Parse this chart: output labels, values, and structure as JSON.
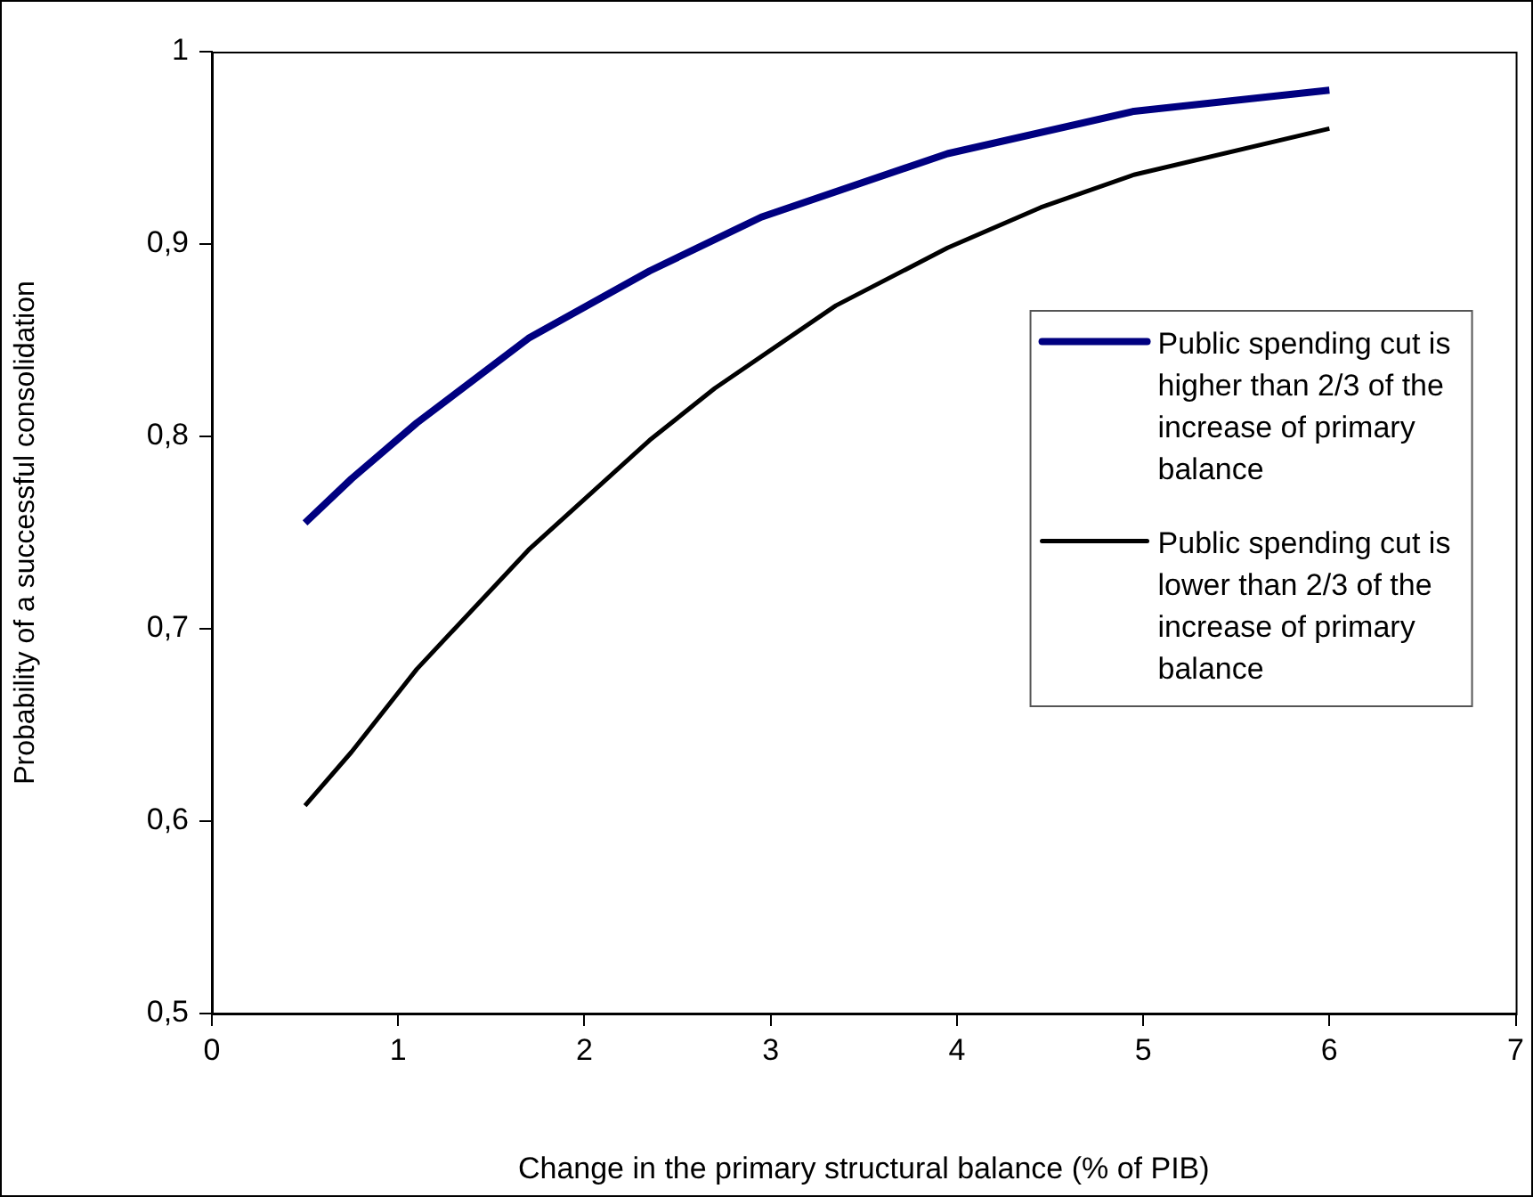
{
  "chart_data": {
    "type": "line",
    "xlabel": "Change in the primary structural balance (% of PIB)",
    "ylabel": "Probability of a successful consolidation",
    "xlim": [
      0,
      7
    ],
    "xticks": [
      0,
      1,
      2,
      3,
      4,
      5,
      6,
      7
    ],
    "ylim": [
      0.5,
      1
    ],
    "yticks": [
      {
        "value": 0.5,
        "label": "0,5"
      },
      {
        "value": 0.6,
        "label": "0,6"
      },
      {
        "value": 0.7,
        "label": "0,7"
      },
      {
        "value": 0.8,
        "label": "0,8"
      },
      {
        "value": 0.9,
        "label": "0,9"
      },
      {
        "value": 1,
        "label": "1"
      }
    ],
    "legend": "right",
    "marker": "none",
    "series": [
      {
        "name": "Public spending cut is higher than 2/3 of the increase of primary balance",
        "color": "#000080",
        "x": [
          0.5,
          0.75,
          1.1,
          1.7,
          2.35,
          2.95,
          3.95,
          4.95,
          6
        ],
        "values": [
          0.755,
          0.778,
          0.807,
          0.851,
          0.886,
          0.914,
          0.947,
          0.969,
          0.98
        ]
      },
      {
        "name": "Public spending cut is lower than 2/3 of the increase of primary balance",
        "color": "#000000",
        "x": [
          0.5,
          0.75,
          1.1,
          1.7,
          2.35,
          2.7,
          3.35,
          3.95,
          4.45,
          4.95,
          6
        ],
        "values": [
          0.608,
          0.636,
          0.679,
          0.741,
          0.798,
          0.825,
          0.868,
          0.898,
          0.919,
          0.936,
          0.96
        ]
      }
    ]
  }
}
